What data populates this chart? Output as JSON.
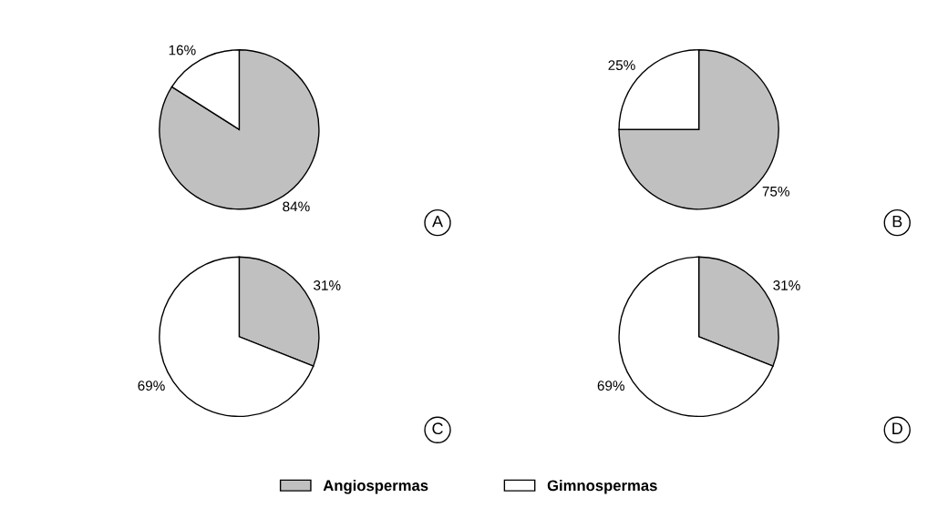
{
  "chart_data": [
    {
      "type": "pie",
      "categories": [
        "Angiospermas",
        "Gimnospermas"
      ],
      "values": [
        84,
        16
      ],
      "value_labels": [
        "84%",
        "16%"
      ],
      "colors": [
        "#c0c0c0",
        "#ffffff"
      ],
      "annotations": [
        "A"
      ],
      "legend": "bottom"
    },
    {
      "type": "pie",
      "categories": [
        null,
        null
      ],
      "values": [
        75,
        25
      ],
      "value_labels": [
        "75%",
        "25%"
      ],
      "colors": [
        "#c0c0c0",
        "#ffffff"
      ],
      "annotations": [
        "B"
      ]
    },
    {
      "type": "pie",
      "categories": [
        null,
        null
      ],
      "values": [
        31,
        69
      ],
      "value_labels": [
        "31%",
        "69%"
      ],
      "colors": [
        "#c0c0c0",
        "#ffffff"
      ],
      "annotations": [
        "C"
      ]
    },
    {
      "type": "pie",
      "categories": [
        null,
        null
      ],
      "values": [
        31,
        69
      ],
      "value_labels": [
        "31%",
        "69%"
      ],
      "colors": [
        "#c0c0c0",
        "#ffffff"
      ],
      "annotations": [
        "D"
      ]
    }
  ]
}
